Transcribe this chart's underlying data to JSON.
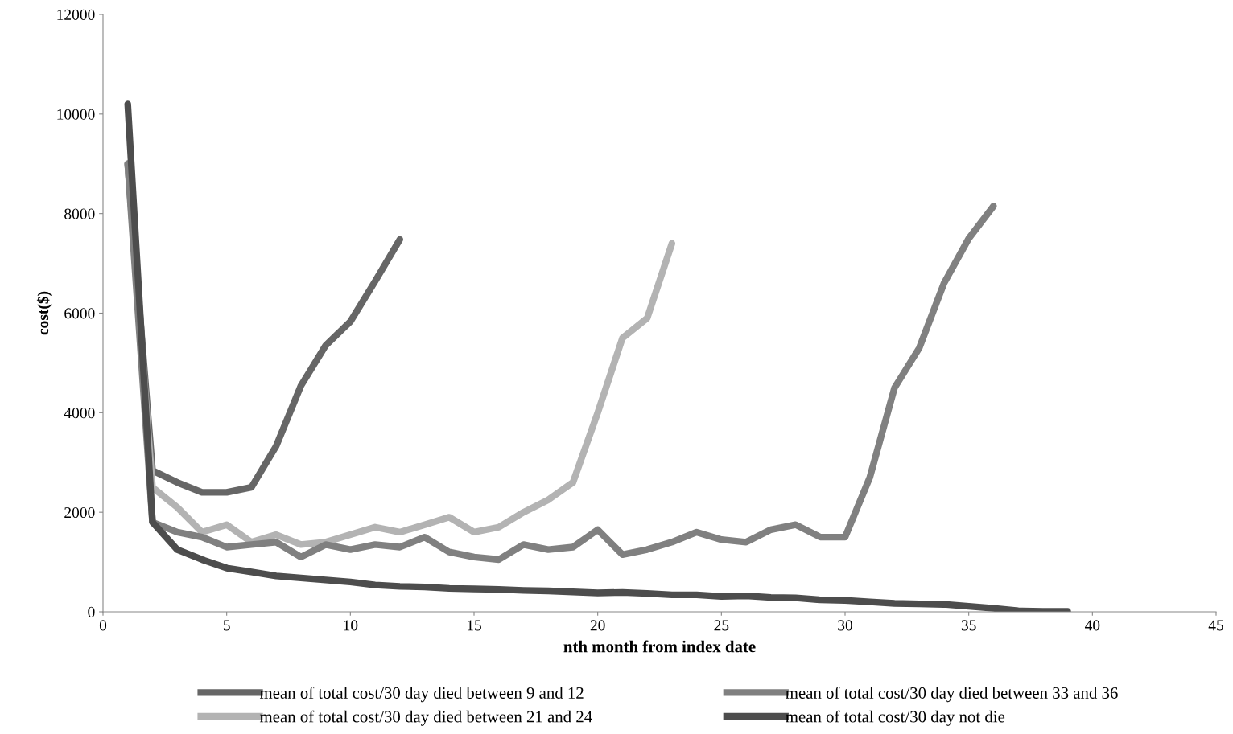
{
  "chart_data": {
    "type": "line",
    "xlabel": "nth month from index date",
    "ylabel": "cost($)",
    "xlim": [
      0,
      45
    ],
    "xticks": [
      0,
      5,
      10,
      15,
      20,
      25,
      30,
      35,
      40,
      45
    ],
    "ylim": [
      0,
      12000
    ],
    "yticks": [
      0,
      2000,
      4000,
      6000,
      8000,
      10000,
      12000
    ],
    "grid": false,
    "legend": "bottom",
    "marker": "none",
    "line_style": "solid",
    "series": [
      {
        "name": "mean of total cost/30 day died between 9 and 12",
        "color": "#666666",
        "x": [
          1,
          2,
          3,
          4,
          5,
          6,
          7,
          8,
          9,
          10,
          11,
          12
        ],
        "values": [
          9000,
          2840,
          2600,
          2400,
          2400,
          2500,
          3330,
          4540,
          5350,
          5830,
          6640,
          7480
        ]
      },
      {
        "name": "mean of total cost/30 day died between 21 and 24",
        "color": "#b3b3b3",
        "x": [
          1,
          2,
          3,
          4,
          5,
          6,
          7,
          8,
          9,
          10,
          11,
          12,
          13,
          14,
          15,
          16,
          17,
          18,
          19,
          20,
          21,
          22,
          23
        ],
        "values": [
          9000,
          2500,
          2100,
          1600,
          1750,
          1400,
          1550,
          1350,
          1400,
          1550,
          1700,
          1600,
          1750,
          1900,
          1600,
          1700,
          2000,
          2250,
          2600,
          4000,
          5500,
          5900,
          7400
        ]
      },
      {
        "name": "mean of total cost/30 day died between 33 and 36",
        "color": "#808080",
        "x": [
          1,
          2,
          3,
          4,
          5,
          6,
          7,
          8,
          9,
          10,
          11,
          12,
          13,
          14,
          15,
          16,
          17,
          18,
          19,
          20,
          21,
          22,
          23,
          24,
          25,
          26,
          27,
          28,
          29,
          30,
          31,
          32,
          33,
          34,
          35,
          36
        ],
        "values": [
          9000,
          1800,
          1600,
          1500,
          1300,
          1350,
          1400,
          1100,
          1350,
          1250,
          1350,
          1300,
          1500,
          1200,
          1100,
          1050,
          1350,
          1250,
          1300,
          1650,
          1150,
          1250,
          1400,
          1600,
          1450,
          1400,
          1650,
          1750,
          1500,
          1500,
          2700,
          4500,
          5300,
          6600,
          7500,
          8150
        ]
      },
      {
        "name": "mean of total cost/30 day not die",
        "color": "#4d4d4d",
        "x": [
          1,
          2,
          3,
          4,
          5,
          6,
          7,
          8,
          9,
          10,
          11,
          12,
          13,
          14,
          15,
          16,
          17,
          18,
          19,
          20,
          21,
          22,
          23,
          24,
          25,
          26,
          27,
          28,
          29,
          30,
          31,
          32,
          33,
          34,
          35,
          36,
          37,
          38,
          39
        ],
        "values": [
          10200,
          1800,
          1250,
          1050,
          880,
          800,
          720,
          680,
          640,
          600,
          540,
          510,
          500,
          470,
          460,
          450,
          430,
          420,
          400,
          380,
          390,
          370,
          340,
          340,
          310,
          320,
          290,
          280,
          240,
          230,
          200,
          170,
          160,
          150,
          110,
          70,
          20,
          10,
          10
        ]
      }
    ]
  }
}
